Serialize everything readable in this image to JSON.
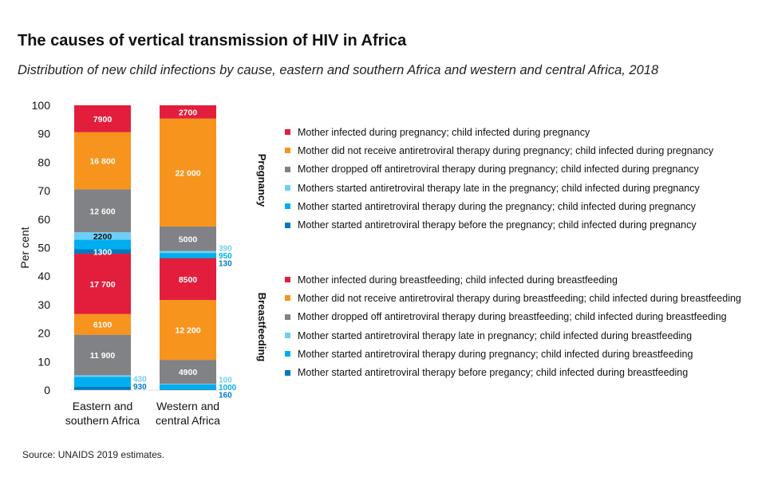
{
  "header": {
    "title": "The causes of vertical transmission of HIV in Africa",
    "subtitle": "Distribution of new child infections by cause, eastern and southern Africa and western and central Africa, 2018"
  },
  "footer": {
    "source": "Source: UNAIDS 2019 estimates."
  },
  "colors": {
    "red": "#e31e3c",
    "orange": "#f7941d",
    "grey": "#808285",
    "light_blue": "#6dcff6",
    "cyan": "#00aeef",
    "blue": "#0079c1"
  },
  "legend": {
    "pregnancy_label": "Pregnancy",
    "breastfeeding_label": "Breastfeeding",
    "pregnancy": [
      {
        "label": "Mother infected during pregnancy; child infected during pregnancy",
        "color": "#e31e3c"
      },
      {
        "label": "Mother did not receive antiretroviral therapy during pregnancy; child infected during pregnancy",
        "color": "#f7941d"
      },
      {
        "label": "Mother dropped off antiretroviral therapy during pregnancy; child infected during pregnancy",
        "color": "#808285"
      },
      {
        "label": "Mothers started antiretroviral therapy late in the pregnancy; child infected during pregnancy",
        "color": "#6dcff6"
      },
      {
        "label": "Mother started antiretroviral therapy during the pregnancy; child infected during pregnancy",
        "color": "#00aeef"
      },
      {
        "label": "Mother started antiretroviral therapy before the pregnancy; child infected during pregnancy",
        "color": "#0079c1"
      }
    ],
    "breastfeeding": [
      {
        "label": "Mother infected during breastfeeding; child infected during breastfeeding",
        "color": "#e31e3c"
      },
      {
        "label": "Mother did not receive antiretroviral therapy during breastfeeding; child infected during breastfeeding",
        "color": "#f7941d"
      },
      {
        "label": "Mother dropped off antiretroviral therapy during breastfeeding; child infected during breastfeeding",
        "color": "#808285"
      },
      {
        "label": "Mother started antiretroviral therapy late in pregnancy; child infected during breastfeeding",
        "color": "#6dcff6"
      },
      {
        "label": "Mother started antiretroviral therapy during pregnancy; child infected during breastfeeding",
        "color": "#00aeef"
      },
      {
        "label": "Mother started antiretroviral therapy before pregancy; child infected during breastfeeding",
        "color": "#0079c1"
      }
    ]
  },
  "chart_data": {
    "type": "bar",
    "stacked": true,
    "ylabel": "Per cent",
    "ylim": [
      0,
      100
    ],
    "yticks": [
      "0",
      "10",
      "20",
      "30",
      "40",
      "50",
      "60",
      "70",
      "80",
      "90",
      "100"
    ],
    "categories": [
      "Eastern and\nsouthern Africa",
      "Western and\ncentral Africa"
    ],
    "category_lines": [
      [
        "Eastern and",
        "southern Africa"
      ],
      [
        "Western and",
        "central Africa"
      ]
    ],
    "bars": [
      {
        "category": "Eastern and southern Africa",
        "segments": [
          {
            "name": "Breastfeeding: started ART before pregnancy",
            "value": 930,
            "label": "930",
            "color": "#0079c1",
            "label_position": "outside"
          },
          {
            "name": "Breastfeeding: started ART during pregnancy",
            "value": 3000,
            "label": "",
            "color": "#00aeef",
            "label_position": "none"
          },
          {
            "name": "Breastfeeding: started ART late in pregnancy",
            "value": 430,
            "label": "430",
            "color": "#6dcff6",
            "label_position": "outside"
          },
          {
            "name": "Breastfeeding: dropped off ART",
            "value": 11900,
            "label": "11 900",
            "color": "#808285",
            "label_position": "inside"
          },
          {
            "name": "Breastfeeding: did not receive ART",
            "value": 6100,
            "label": "6100",
            "color": "#f7941d",
            "label_position": "inside"
          },
          {
            "name": "Breastfeeding: mother infected during breastfeeding",
            "value": 17700,
            "label": "17 700",
            "color": "#e31e3c",
            "label_position": "inside"
          },
          {
            "name": "Pregnancy: started ART before pregnancy",
            "value": 1300,
            "label": "1300",
            "color": "#0079c1",
            "label_position": "inside"
          },
          {
            "name": "Pregnancy: started ART during pregnancy",
            "value": 2800,
            "label": "",
            "color": "#00aeef",
            "label_position": "none"
          },
          {
            "name": "Pregnancy: started ART late",
            "value": 2200,
            "label": "2200",
            "color": "#6dcff6",
            "label_position": "inside"
          },
          {
            "name": "Pregnancy: dropped off ART",
            "value": 12600,
            "label": "12 600",
            "color": "#808285",
            "label_position": "inside"
          },
          {
            "name": "Pregnancy: did not receive ART",
            "value": 16800,
            "label": "16 800",
            "color": "#f7941d",
            "label_position": "inside"
          },
          {
            "name": "Pregnancy: mother infected during pregnancy",
            "value": 7900,
            "label": "7900",
            "color": "#e31e3c",
            "label_position": "inside"
          }
        ]
      },
      {
        "category": "Western and central Africa",
        "segments": [
          {
            "name": "Breastfeeding: started ART before pregnancy",
            "value": 160,
            "label": "160",
            "color": "#0079c1",
            "label_position": "outside"
          },
          {
            "name": "Breastfeeding: started ART during pregnancy",
            "value": 1000,
            "label": "1000",
            "color": "#00aeef",
            "label_position": "outside"
          },
          {
            "name": "Breastfeeding: started ART late in pregnancy",
            "value": 100,
            "label": "100",
            "color": "#6dcff6",
            "label_position": "outside"
          },
          {
            "name": "Breastfeeding: dropped off ART",
            "value": 4900,
            "label": "4900",
            "color": "#808285",
            "label_position": "inside"
          },
          {
            "name": "Breastfeeding: did not receive ART",
            "value": 12200,
            "label": "12 200",
            "color": "#f7941d",
            "label_position": "inside"
          },
          {
            "name": "Breastfeeding: mother infected during breastfeeding",
            "value": 8500,
            "label": "8500",
            "color": "#e31e3c",
            "label_position": "inside"
          },
          {
            "name": "Pregnancy: started ART before pregnancy",
            "value": 130,
            "label": "130",
            "color": "#0079c1",
            "label_position": "outside"
          },
          {
            "name": "Pregnancy: started ART during pregnancy",
            "value": 950,
            "label": "950",
            "color": "#00aeef",
            "label_position": "outside"
          },
          {
            "name": "Pregnancy: started ART late",
            "value": 390,
            "label": "390",
            "color": "#6dcff6",
            "label_position": "outside"
          },
          {
            "name": "Pregnancy: dropped off ART",
            "value": 5000,
            "label": "5000",
            "color": "#808285",
            "label_position": "inside"
          },
          {
            "name": "Pregnancy: did not receive ART",
            "value": 22000,
            "label": "22 000",
            "color": "#f7941d",
            "label_position": "inside"
          },
          {
            "name": "Pregnancy: mother infected during pregnancy",
            "value": 2700,
            "label": "2700",
            "color": "#e31e3c",
            "label_position": "inside"
          }
        ]
      }
    ]
  }
}
